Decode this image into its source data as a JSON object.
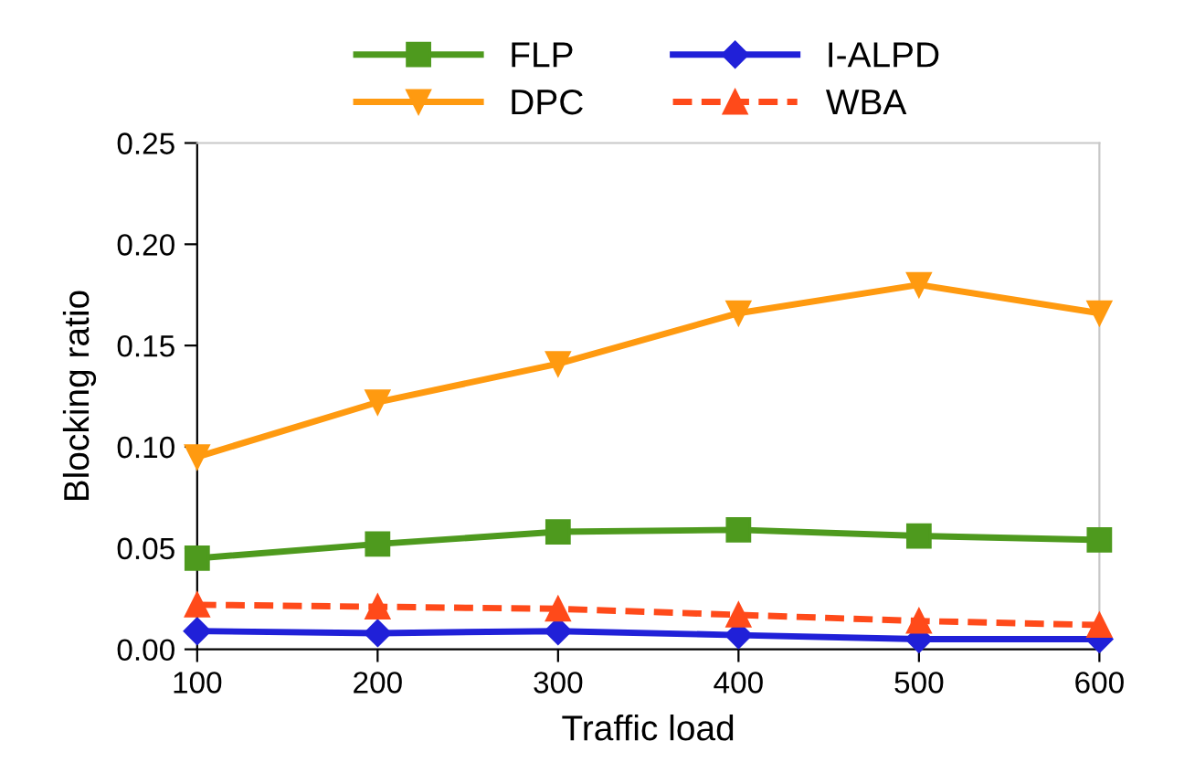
{
  "chart_data": {
    "type": "line",
    "xlabel": "Traffic load",
    "ylabel": "Blocking ratio",
    "x": [
      100,
      200,
      300,
      400,
      500,
      600
    ],
    "series": [
      {
        "name": "FLP",
        "color": "#4e9a1e",
        "marker": "square",
        "line_style": "solid",
        "values": [
          0.045,
          0.052,
          0.058,
          0.059,
          0.056,
          0.054
        ]
      },
      {
        "name": "I-ALPD",
        "color": "#2020d8",
        "marker": "diamond",
        "line_style": "solid",
        "values": [
          0.009,
          0.008,
          0.009,
          0.007,
          0.005,
          0.005
        ]
      },
      {
        "name": "DPC",
        "color": "#ff9a10",
        "marker": "triangle_down",
        "line_style": "solid",
        "values": [
          0.095,
          0.122,
          0.141,
          0.166,
          0.18,
          0.166
        ]
      },
      {
        "name": "WBA",
        "color": "#ff4a1a",
        "marker": "triangle",
        "line_style": "dashed",
        "values": [
          0.022,
          0.021,
          0.02,
          0.017,
          0.014,
          0.012
        ]
      }
    ],
    "xlim": [
      100,
      600
    ],
    "xticks": [
      100,
      200,
      300,
      400,
      500,
      600
    ],
    "ylim": [
      0,
      0.25
    ],
    "yticks": [
      {
        "value": 0,
        "label": "0.00"
      },
      {
        "value": 0.05,
        "label": "0.05"
      },
      {
        "value": 0.1,
        "label": "0.10"
      },
      {
        "value": 0.15,
        "label": "0.15"
      },
      {
        "value": 0.2,
        "label": "0.20"
      },
      {
        "value": 0.25,
        "label": "0.25"
      }
    ],
    "grid": false,
    "legend": "top"
  }
}
